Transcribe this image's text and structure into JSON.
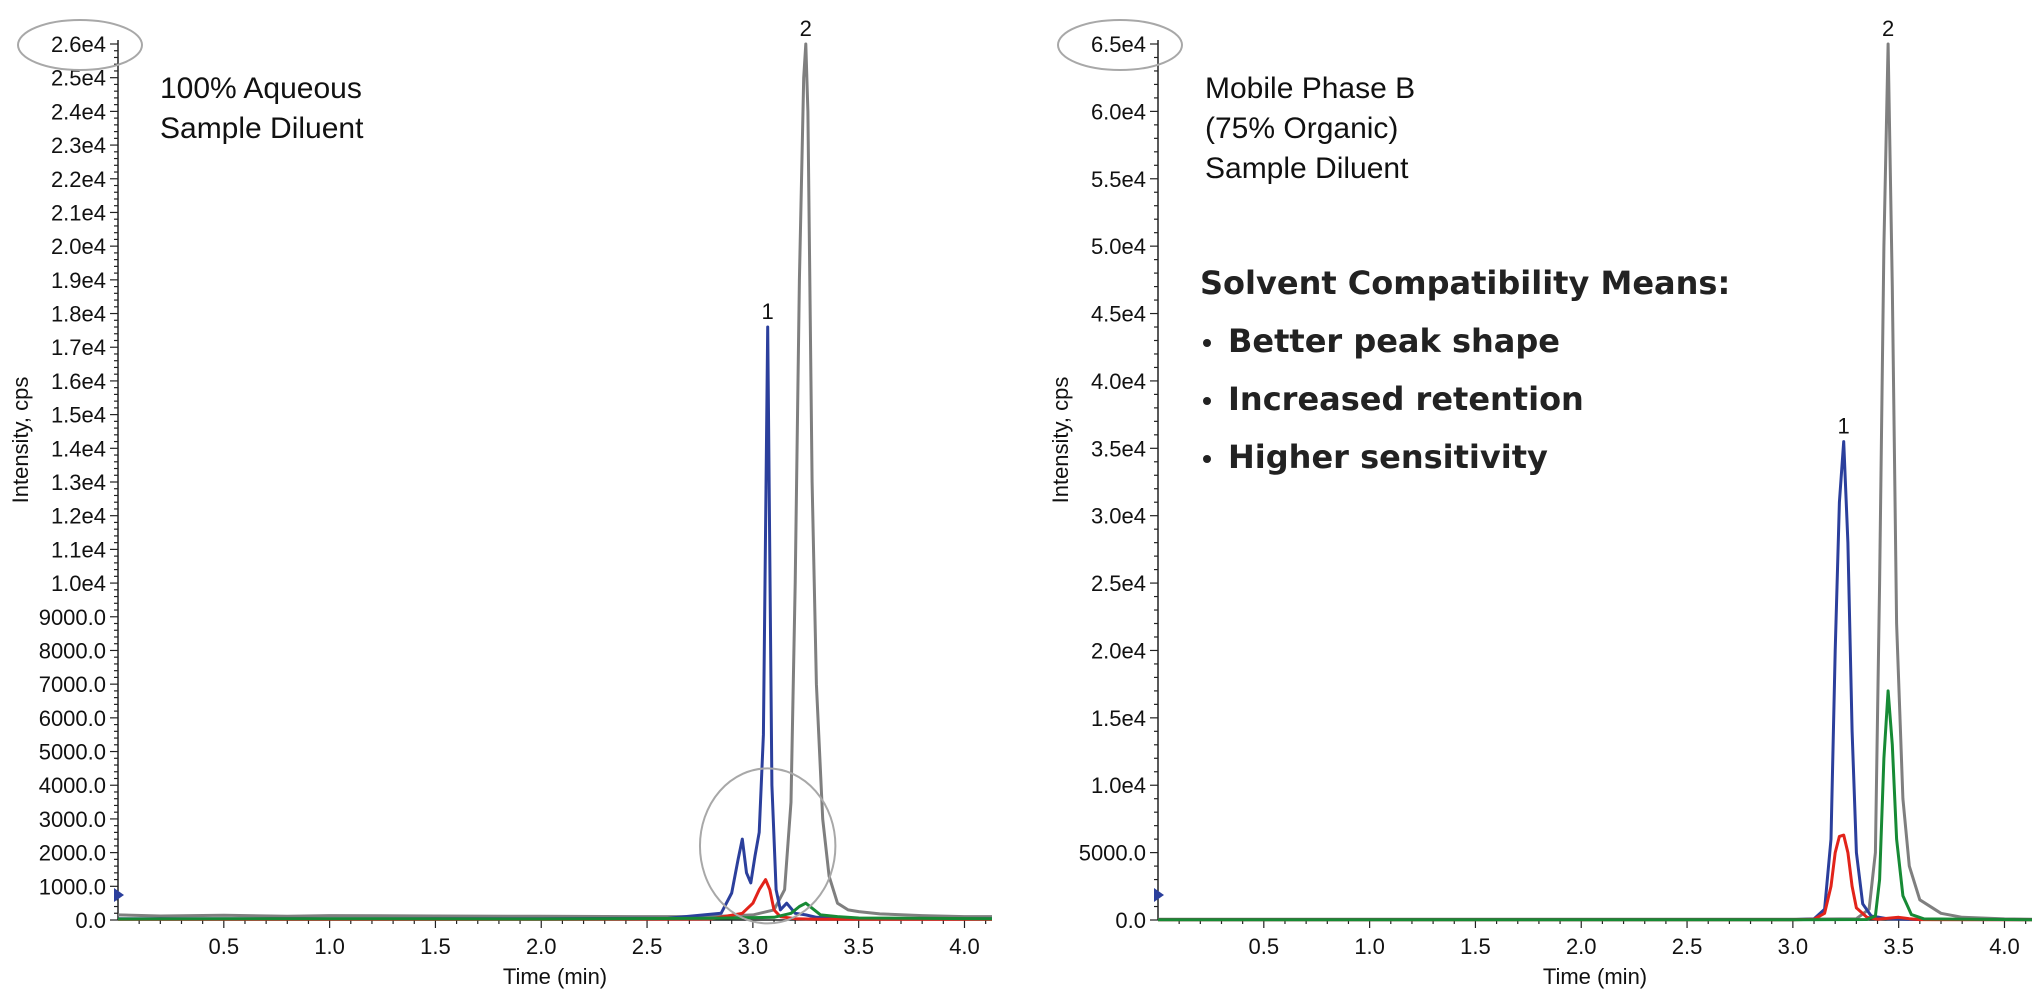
{
  "colors": {
    "blue": "#2b3f9c",
    "gray": "#7f7f7f",
    "red": "#e2231a",
    "green": "#178a35",
    "highlight_circle": "#a8a8a8"
  },
  "chart_data": [
    {
      "type": "line",
      "title": "",
      "annotation_lines": [
        "100% Aqueous",
        "Sample Diluent"
      ],
      "xlabel": "Time (min)",
      "ylabel": "Intensity, cps",
      "xlim": [
        0.0,
        4.13
      ],
      "ylim": [
        0,
        26000
      ],
      "x_ticks": [
        0.5,
        1.0,
        1.5,
        2.0,
        2.5,
        3.0,
        3.5,
        4.0
      ],
      "x_tick_labels": [
        "0.5",
        "1.0",
        "1.5",
        "2.0",
        "2.5",
        "3.0",
        "3.5",
        "4.0"
      ],
      "y_ticks": [
        0,
        1000,
        2000,
        3000,
        4000,
        5000,
        6000,
        7000,
        8000,
        9000,
        10000,
        11000,
        12000,
        13000,
        14000,
        15000,
        16000,
        17000,
        18000,
        19000,
        20000,
        21000,
        22000,
        23000,
        24000,
        25000,
        26000
      ],
      "y_tick_labels": [
        "0.0",
        "1000.0",
        "2000.0",
        "3000.0",
        "4000.0",
        "5000.0",
        "6000.0",
        "7000.0",
        "8000.0",
        "9000.0",
        "1.0e4",
        "1.1e4",
        "1.2e4",
        "1.3e4",
        "1.4e4",
        "1.5e4",
        "1.6e4",
        "1.7e4",
        "1.8e4",
        "1.9e4",
        "2.0e4",
        "2.1e4",
        "2.2e4",
        "2.3e4",
        "2.4e4",
        "2.5e4",
        "2.6e4"
      ],
      "peak_labels": [
        {
          "text": "1",
          "x": 3.07,
          "y": 17600
        },
        {
          "text": "2",
          "x": 3.25,
          "y": 26000
        }
      ],
      "highlight_circles": [
        {
          "cx": 3.07,
          "cy": 2200,
          "rx": 0.32,
          "ry": 2300
        },
        {
          "target": "top-tick",
          "value": 26000
        }
      ],
      "series": [
        {
          "color_key": "gray",
          "x": [
            0.0,
            0.2,
            0.5,
            0.8,
            1.0,
            1.5,
            2.0,
            2.5,
            2.8,
            3.0,
            3.1,
            3.15,
            3.18,
            3.2,
            3.22,
            3.24,
            3.25,
            3.26,
            3.28,
            3.3,
            3.33,
            3.36,
            3.4,
            3.45,
            3.5,
            3.6,
            3.8,
            4.0,
            4.13
          ],
          "y": [
            150,
            120,
            140,
            110,
            130,
            120,
            110,
            100,
            100,
            150,
            300,
            900,
            3500,
            10000,
            19000,
            25000,
            26000,
            24000,
            13000,
            7000,
            3000,
            1300,
            500,
            300,
            250,
            180,
            130,
            100,
            100
          ]
        },
        {
          "color_key": "blue",
          "x": [
            0.0,
            0.5,
            1.0,
            2.0,
            2.6,
            2.85,
            2.9,
            2.93,
            2.95,
            2.97,
            2.99,
            3.01,
            3.03,
            3.05,
            3.07,
            3.09,
            3.11,
            3.13,
            3.16,
            3.2,
            3.25,
            3.3,
            3.35,
            3.45,
            3.6,
            4.0,
            4.13
          ],
          "y": [
            40,
            40,
            40,
            40,
            50,
            200,
            800,
            1800,
            2400,
            1400,
            1100,
            1900,
            2600,
            5500,
            17600,
            4000,
            900,
            300,
            500,
            200,
            150,
            80,
            60,
            40,
            40,
            40,
            40
          ]
        },
        {
          "color_key": "red",
          "x": [
            0.0,
            1.0,
            2.0,
            2.8,
            2.95,
            3.0,
            3.03,
            3.06,
            3.08,
            3.1,
            3.13,
            3.2,
            3.3,
            4.13
          ],
          "y": [
            20,
            20,
            20,
            30,
            200,
            500,
            900,
            1200,
            900,
            300,
            100,
            40,
            20,
            20
          ]
        },
        {
          "color_key": "green",
          "x": [
            0.0,
            1.0,
            2.0,
            2.8,
            3.1,
            3.18,
            3.22,
            3.25,
            3.28,
            3.32,
            3.4,
            3.5,
            4.13
          ],
          "y": [
            30,
            40,
            30,
            50,
            80,
            200,
            400,
            500,
            350,
            150,
            100,
            60,
            40
          ]
        }
      ]
    },
    {
      "type": "line",
      "title": "",
      "annotation_lines": [
        "Mobile Phase B",
        "(75% Organic)",
        "Sample Diluent"
      ],
      "callout_heading": "Solvent Compatibility Means:",
      "callout_bullets": [
        "Better peak shape",
        "Increased retention",
        "Higher sensitivity"
      ],
      "xlabel": "Time (min)",
      "ylabel": "Intensity, cps",
      "xlim": [
        0.0,
        4.13
      ],
      "ylim": [
        0,
        65000
      ],
      "x_ticks": [
        0.5,
        1.0,
        1.5,
        2.0,
        2.5,
        3.0,
        3.5,
        4.0
      ],
      "x_tick_labels": [
        "0.5",
        "1.0",
        "1.5",
        "2.0",
        "2.5",
        "3.0",
        "3.5",
        "4.0"
      ],
      "y_ticks": [
        0,
        5000,
        10000,
        15000,
        20000,
        25000,
        30000,
        35000,
        40000,
        45000,
        50000,
        55000,
        60000,
        65000
      ],
      "y_tick_labels": [
        "0.0",
        "5000.0",
        "1.0e4",
        "1.5e4",
        "2.0e4",
        "2.5e4",
        "3.0e4",
        "3.5e4",
        "4.0e4",
        "4.5e4",
        "5.0e4",
        "5.5e4",
        "6.0e4",
        "6.5e4"
      ],
      "peak_labels": [
        {
          "text": "1",
          "x": 3.24,
          "y": 35500
        },
        {
          "text": "2",
          "x": 3.45,
          "y": 65000
        }
      ],
      "highlight_circles": [
        {
          "target": "top-tick",
          "value": 65000
        }
      ],
      "series": [
        {
          "color_key": "gray",
          "x": [
            0.0,
            1.0,
            2.0,
            3.0,
            3.3,
            3.36,
            3.39,
            3.41,
            3.43,
            3.45,
            3.47,
            3.49,
            3.52,
            3.55,
            3.6,
            3.7,
            3.8,
            4.0,
            4.13
          ],
          "y": [
            50,
            50,
            50,
            50,
            100,
            800,
            5000,
            25000,
            50000,
            65000,
            47000,
            22000,
            9000,
            4000,
            1500,
            500,
            200,
            80,
            50
          ]
        },
        {
          "color_key": "blue",
          "x": [
            0.0,
            1.0,
            2.0,
            3.0,
            3.1,
            3.15,
            3.18,
            3.2,
            3.22,
            3.24,
            3.26,
            3.28,
            3.3,
            3.33,
            3.37,
            3.45,
            3.6,
            4.13
          ],
          "y": [
            30,
            30,
            30,
            30,
            80,
            800,
            6000,
            20000,
            31000,
            35500,
            28000,
            14000,
            5000,
            1200,
            300,
            80,
            40,
            30
          ]
        },
        {
          "color_key": "red",
          "x": [
            0.0,
            1.0,
            2.0,
            3.0,
            3.1,
            3.15,
            3.18,
            3.2,
            3.22,
            3.24,
            3.26,
            3.28,
            3.3,
            3.35,
            3.4,
            3.5,
            3.55,
            3.6,
            4.13
          ],
          "y": [
            20,
            20,
            20,
            20,
            60,
            500,
            2500,
            5000,
            6200,
            6300,
            5000,
            2500,
            900,
            200,
            60,
            200,
            100,
            30,
            20
          ]
        },
        {
          "color_key": "green",
          "x": [
            0.0,
            1.0,
            2.0,
            3.0,
            3.35,
            3.39,
            3.41,
            3.43,
            3.45,
            3.47,
            3.49,
            3.52,
            3.56,
            3.62,
            4.13
          ],
          "y": [
            20,
            20,
            20,
            20,
            40,
            300,
            3000,
            12000,
            17000,
            13000,
            6000,
            1800,
            400,
            80,
            20
          ]
        }
      ]
    }
  ]
}
